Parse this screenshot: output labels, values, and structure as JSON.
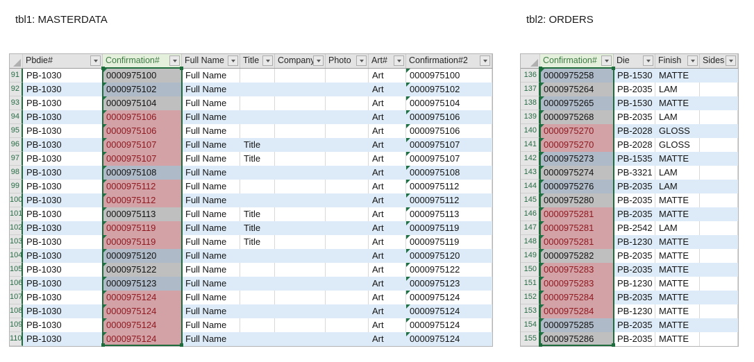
{
  "colors": {
    "selection_green": "#1e6b3c",
    "triangle_green": "#1e7145",
    "band_blue": "#dcebf7",
    "fill_gray": "#bfbfbf",
    "fill_gray_banded": "#aebac7",
    "duplicate_fill": "#d3a2a7",
    "duplicate_text": "#8e1a20",
    "header_green_bg": "#e4efdc",
    "header_green_text": "#3e7b43",
    "row_number_text": "#276b44"
  },
  "tables": [
    {
      "title": "tbl1: MASTERDATA",
      "columns": [
        {
          "label": "Pbdie#"
        },
        {
          "label": "Confirmation#",
          "highlight": true
        },
        {
          "label": "Full Name"
        },
        {
          "label": "Title"
        },
        {
          "label": "Company"
        },
        {
          "label": "Photo"
        },
        {
          "label": "Art#"
        },
        {
          "label": "Confirmation#2"
        }
      ],
      "rows": [
        {
          "num": "91",
          "duplicate": false,
          "cells": [
            "PB-1030",
            "0000975100",
            "Full Name",
            "",
            "",
            "",
            "Art",
            "0000975100"
          ]
        },
        {
          "num": "92",
          "duplicate": false,
          "cells": [
            "PB-1030",
            "0000975102",
            "Full Name",
            "",
            "",
            "",
            "Art",
            "0000975102"
          ]
        },
        {
          "num": "93",
          "duplicate": false,
          "cells": [
            "PB-1030",
            "0000975104",
            "Full Name",
            "",
            "",
            "",
            "Art",
            "0000975104"
          ]
        },
        {
          "num": "94",
          "duplicate": true,
          "cells": [
            "PB-1030",
            "0000975106",
            "Full Name",
            "",
            "",
            "",
            "Art",
            "0000975106"
          ]
        },
        {
          "num": "95",
          "duplicate": true,
          "cells": [
            "PB-1030",
            "0000975106",
            "Full Name",
            "",
            "",
            "",
            "Art",
            "0000975106"
          ]
        },
        {
          "num": "96",
          "duplicate": true,
          "cells": [
            "PB-1030",
            "0000975107",
            "Full Name",
            "Title",
            "",
            "",
            "Art",
            "0000975107"
          ]
        },
        {
          "num": "97",
          "duplicate": true,
          "cells": [
            "PB-1030",
            "0000975107",
            "Full Name",
            "Title",
            "",
            "",
            "Art",
            "0000975107"
          ]
        },
        {
          "num": "98",
          "duplicate": false,
          "cells": [
            "PB-1030",
            "0000975108",
            "Full Name",
            "",
            "",
            "",
            "Art",
            "0000975108"
          ]
        },
        {
          "num": "99",
          "duplicate": true,
          "cells": [
            "PB-1030",
            "0000975112",
            "Full Name",
            "",
            "",
            "",
            "Art",
            "0000975112"
          ]
        },
        {
          "num": "100",
          "duplicate": true,
          "cells": [
            "PB-1030",
            "0000975112",
            "Full Name",
            "",
            "",
            "",
            "Art",
            "0000975112"
          ]
        },
        {
          "num": "101",
          "duplicate": false,
          "cells": [
            "PB-1030",
            "0000975113",
            "Full Name",
            "Title",
            "",
            "",
            "Art",
            "0000975113"
          ]
        },
        {
          "num": "102",
          "duplicate": true,
          "cells": [
            "PB-1030",
            "0000975119",
            "Full Name",
            "Title",
            "",
            "",
            "Art",
            "0000975119"
          ]
        },
        {
          "num": "103",
          "duplicate": true,
          "cells": [
            "PB-1030",
            "0000975119",
            "Full Name",
            "Title",
            "",
            "",
            "Art",
            "0000975119"
          ]
        },
        {
          "num": "104",
          "duplicate": false,
          "cells": [
            "PB-1030",
            "0000975120",
            "Full Name",
            "",
            "",
            "",
            "Art",
            "0000975120"
          ]
        },
        {
          "num": "105",
          "duplicate": false,
          "cells": [
            "PB-1030",
            "0000975122",
            "Full Name",
            "",
            "",
            "",
            "Art",
            "0000975122"
          ]
        },
        {
          "num": "106",
          "duplicate": false,
          "cells": [
            "PB-1030",
            "0000975123",
            "Full Name",
            "",
            "",
            "",
            "Art",
            "0000975123"
          ]
        },
        {
          "num": "107",
          "duplicate": true,
          "cells": [
            "PB-1030",
            "0000975124",
            "Full Name",
            "",
            "",
            "",
            "Art",
            "0000975124"
          ]
        },
        {
          "num": "108",
          "duplicate": true,
          "cells": [
            "PB-1030",
            "0000975124",
            "Full Name",
            "",
            "",
            "",
            "Art",
            "0000975124"
          ]
        },
        {
          "num": "109",
          "duplicate": true,
          "cells": [
            "PB-1030",
            "0000975124",
            "Full Name",
            "",
            "",
            "",
            "Art",
            "0000975124"
          ]
        },
        {
          "num": "110",
          "duplicate": true,
          "cells": [
            "PB-1030",
            "0000975124",
            "Full Name",
            "",
            "",
            "",
            "Art",
            "0000975124"
          ]
        }
      ]
    },
    {
      "title": "tbl2: ORDERS",
      "columns": [
        {
          "label": "Confirmation#",
          "highlight": true
        },
        {
          "label": "Die"
        },
        {
          "label": "Finish"
        },
        {
          "label": "Sides"
        }
      ],
      "rows": [
        {
          "num": "136",
          "duplicate": false,
          "cells": [
            "0000975258",
            "PB-1530",
            "MATTE",
            ""
          ]
        },
        {
          "num": "137",
          "duplicate": false,
          "cells": [
            "0000975264",
            "PB-2035",
            "LAM",
            ""
          ]
        },
        {
          "num": "138",
          "duplicate": false,
          "cells": [
            "0000975265",
            "PB-1530",
            "MATTE",
            ""
          ]
        },
        {
          "num": "139",
          "duplicate": false,
          "cells": [
            "0000975268",
            "PB-2035",
            "LAM",
            ""
          ]
        },
        {
          "num": "140",
          "duplicate": true,
          "cells": [
            "0000975270",
            "PB-2028",
            "GLOSS",
            ""
          ]
        },
        {
          "num": "141",
          "duplicate": true,
          "cells": [
            "0000975270",
            "PB-2028",
            "GLOSS",
            ""
          ]
        },
        {
          "num": "142",
          "duplicate": false,
          "cells": [
            "0000975273",
            "PB-1535",
            "MATTE",
            ""
          ]
        },
        {
          "num": "143",
          "duplicate": false,
          "cells": [
            "0000975274",
            "PB-3321",
            "LAM",
            ""
          ]
        },
        {
          "num": "144",
          "duplicate": false,
          "cells": [
            "0000975276",
            "PB-2035",
            "LAM",
            ""
          ]
        },
        {
          "num": "145",
          "duplicate": false,
          "cells": [
            "0000975280",
            "PB-2035",
            "MATTE",
            ""
          ]
        },
        {
          "num": "146",
          "duplicate": true,
          "cells": [
            "0000975281",
            "PB-2035",
            "MATTE",
            ""
          ]
        },
        {
          "num": "147",
          "duplicate": true,
          "cells": [
            "0000975281",
            "PB-2542",
            "LAM",
            ""
          ]
        },
        {
          "num": "148",
          "duplicate": true,
          "cells": [
            "0000975281",
            "PB-1230",
            "MATTE",
            ""
          ]
        },
        {
          "num": "149",
          "duplicate": false,
          "cells": [
            "0000975282",
            "PB-2035",
            "MATTE",
            ""
          ]
        },
        {
          "num": "150",
          "duplicate": true,
          "cells": [
            "0000975283",
            "PB-2035",
            "MATTE",
            ""
          ]
        },
        {
          "num": "151",
          "duplicate": true,
          "cells": [
            "0000975283",
            "PB-1230",
            "MATTE",
            ""
          ]
        },
        {
          "num": "152",
          "duplicate": true,
          "cells": [
            "0000975284",
            "PB-2035",
            "MATTE",
            ""
          ]
        },
        {
          "num": "153",
          "duplicate": true,
          "cells": [
            "0000975284",
            "PB-1230",
            "MATTE",
            ""
          ]
        },
        {
          "num": "154",
          "duplicate": false,
          "cells": [
            "0000975285",
            "PB-2035",
            "MATTE",
            ""
          ]
        },
        {
          "num": "155",
          "duplicate": false,
          "cells": [
            "0000975286",
            "PB-2035",
            "MATTE",
            ""
          ]
        }
      ]
    }
  ]
}
